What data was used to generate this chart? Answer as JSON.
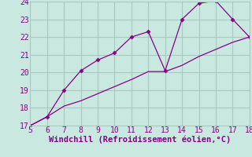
{
  "xlabel": "Windchill (Refroidissement éolien,°C)",
  "xlim": [
    5,
    18
  ],
  "ylim": [
    17,
    24
  ],
  "xticks": [
    5,
    6,
    7,
    8,
    9,
    10,
    11,
    12,
    13,
    14,
    15,
    16,
    17,
    18
  ],
  "yticks": [
    17,
    18,
    19,
    20,
    21,
    22,
    23,
    24
  ],
  "line1_x": [
    5,
    6,
    7,
    8,
    9,
    10,
    11,
    12,
    13,
    14,
    15,
    16,
    17,
    18
  ],
  "line1_y": [
    17.0,
    17.5,
    19.0,
    20.1,
    20.7,
    21.1,
    22.0,
    22.3,
    20.1,
    23.0,
    23.9,
    24.05,
    23.0,
    22.0
  ],
  "line2_x": [
    5,
    6,
    7,
    8,
    9,
    10,
    11,
    12,
    13,
    14,
    15,
    16,
    17,
    18
  ],
  "line2_y": [
    17.0,
    17.5,
    18.1,
    18.4,
    18.8,
    19.2,
    19.6,
    20.05,
    20.05,
    20.4,
    20.9,
    21.3,
    21.7,
    22.0
  ],
  "line_color": "#880088",
  "marker": "D",
  "marker_size": 2.5,
  "bg_color": "#c8e8e0",
  "grid_color": "#a8c8c0",
  "label_color": "#880088",
  "xlabel_fontsize": 7.5,
  "tick_fontsize": 7
}
